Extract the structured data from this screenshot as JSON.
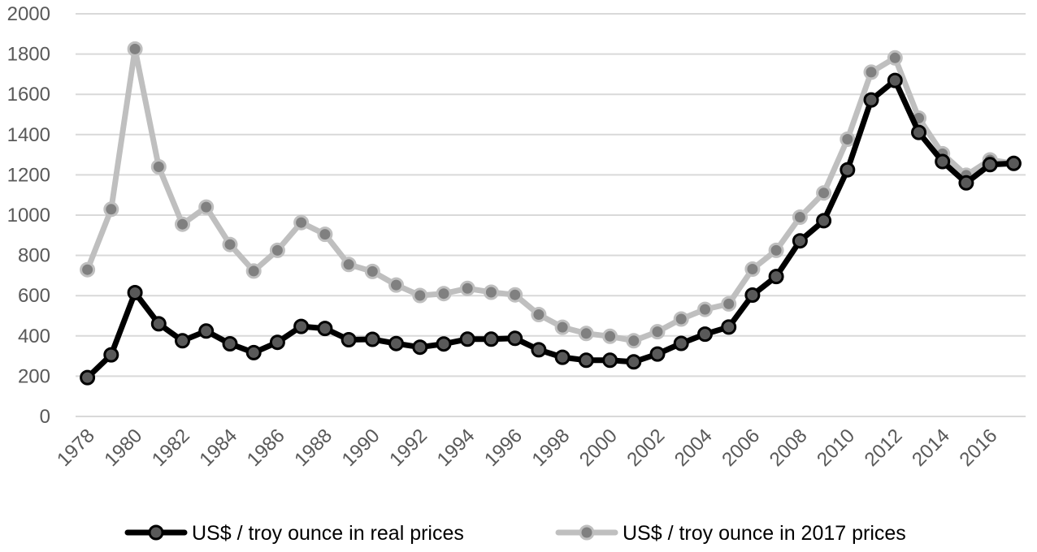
{
  "chart_data": {
    "type": "line",
    "title": "",
    "xlabel": "",
    "ylabel": "",
    "ylim": [
      0,
      2000
    ],
    "yticks": [
      0,
      200,
      400,
      600,
      800,
      1000,
      1200,
      1400,
      1600,
      1800,
      2000
    ],
    "ytick_labels": [
      "0",
      "200",
      "400",
      "600",
      "800",
      "1000",
      "1200",
      "1400",
      "1600",
      "1800",
      "2000"
    ],
    "xtick_labels": [
      "1978",
      "1980",
      "1982",
      "1984",
      "1986",
      "1988",
      "1990",
      "1992",
      "1994",
      "1996",
      "1998",
      "2000",
      "2002",
      "2004",
      "2006",
      "2008",
      "2010",
      "2012",
      "2014",
      "2016"
    ],
    "x": [
      1978,
      1979,
      1980,
      1981,
      1982,
      1983,
      1984,
      1985,
      1986,
      1987,
      1988,
      1989,
      1990,
      1991,
      1992,
      1993,
      1994,
      1995,
      1996,
      1997,
      1998,
      1999,
      2000,
      2001,
      2002,
      2003,
      2004,
      2005,
      2006,
      2007,
      2008,
      2009,
      2010,
      2011,
      2012,
      2013,
      2014,
      2015,
      2016,
      2017
    ],
    "grid": true,
    "legend_position": "bottom",
    "series": [
      {
        "name": "US$ / troy ounce in real prices",
        "color": "#000000",
        "marker_color": "#595959",
        "values": [
          193,
          306,
          615,
          460,
          376,
          424,
          361,
          317,
          368,
          447,
          437,
          381,
          383,
          362,
          344,
          360,
          384,
          384,
          388,
          331,
          294,
          279,
          279,
          271,
          310,
          363,
          409,
          444,
          603,
          695,
          872,
          972,
          1225,
          1572,
          1669,
          1411,
          1266,
          1160,
          1251,
          1257
        ]
      },
      {
        "name": "US$ / troy ounce in 2017 prices",
        "color": "#bfbfbf",
        "marker_color": "#808080",
        "values": [
          729,
          1029,
          1825,
          1240,
          955,
          1040,
          854,
          722,
          825,
          963,
          905,
          755,
          720,
          653,
          601,
          610,
          636,
          617,
          604,
          506,
          443,
          412,
          398,
          376,
          421,
          484,
          532,
          559,
          732,
          825,
          990,
          1110,
          1377,
          1710,
          1781,
          1482,
          1305,
          1198,
          1274,
          1257
        ]
      }
    ]
  }
}
